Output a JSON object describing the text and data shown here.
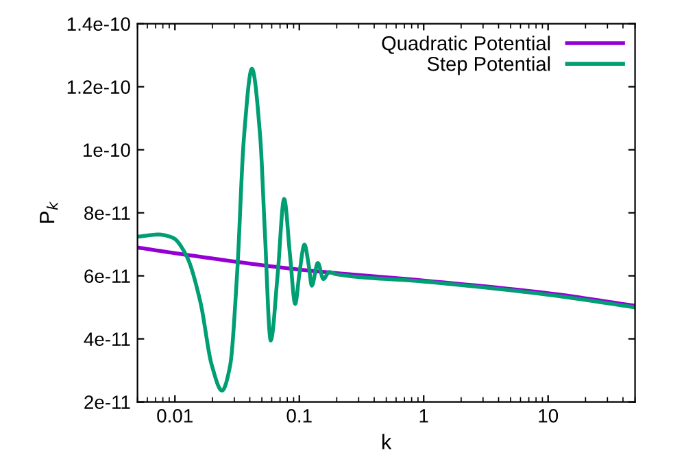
{
  "chart_data": {
    "type": "line",
    "xlabel": "k",
    "ylabel": "P$_{k}$",
    "log": "x",
    "xlim": [
      0.005,
      50
    ],
    "xticks": [
      0.01,
      0.1,
      1,
      10
    ],
    "ylim": [
      2e-11,
      1.4e-10
    ],
    "yticks": [
      2e-11,
      4e-11,
      6e-11,
      8e-11,
      1e-10,
      1.2e-10,
      1.4e-10
    ],
    "grid": false,
    "legend": "top right",
    "marker": "none",
    "line_style": "solid",
    "series": [
      {
        "name": "Quadratic Potential",
        "color": "#9400d3",
        "x": [
          0.005,
          0.01,
          0.1,
          1,
          10,
          50
        ],
        "values": [
          6.9e-11,
          6.72e-11,
          6.2e-11,
          5.85e-11,
          5.45e-11,
          5.05e-11
        ]
      },
      {
        "name": "Step Potential",
        "color": "#009e73",
        "x": [
          0.005,
          0.0074,
          0.0096,
          0.0124,
          0.016,
          0.0198,
          0.0239,
          0.0278,
          0.0316,
          0.0359,
          0.0416,
          0.0485,
          0.0527,
          0.0589,
          0.067,
          0.0755,
          0.0843,
          0.0927,
          0.1,
          0.11,
          0.119,
          0.126,
          0.141,
          0.156,
          0.174,
          0.198,
          1,
          10,
          50
        ],
        "values": [
          7.24e-11,
          7.31e-11,
          7.21e-11,
          6.63e-11,
          5.18e-11,
          3.16e-11,
          2.36e-11,
          3.16e-11,
          6.05e-11,
          1.04e-10,
          1.257e-10,
          1.04e-10,
          7.5e-11,
          3.95e-11,
          6.05e-11,
          8.44e-11,
          6.63e-11,
          5.11e-11,
          6.05e-11,
          6.99e-11,
          6.34e-11,
          5.69e-11,
          6.41e-11,
          5.9e-11,
          6.12e-11,
          6.05e-11,
          5.82e-11,
          5.4e-11,
          5e-11
        ]
      }
    ]
  }
}
